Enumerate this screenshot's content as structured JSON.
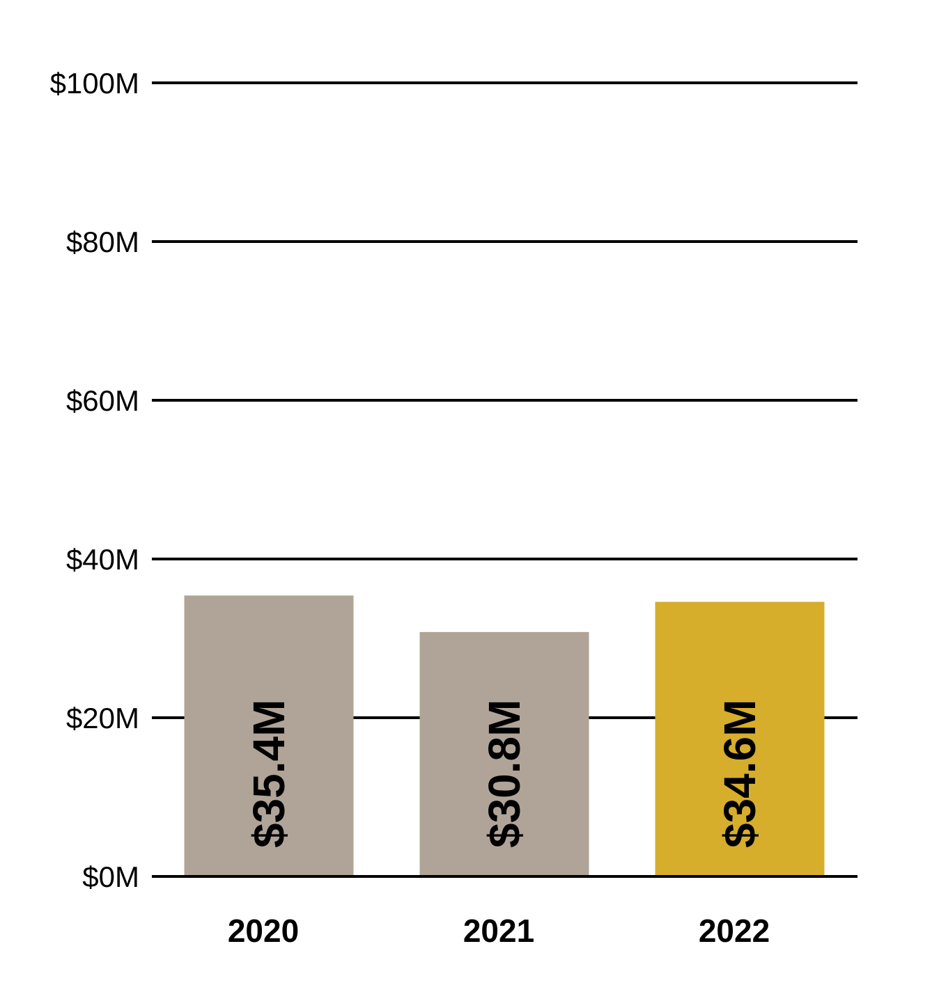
{
  "chart_data": {
    "type": "bar",
    "categories": [
      "2020",
      "2021",
      "2022"
    ],
    "values": [
      35.4,
      30.8,
      34.6
    ],
    "value_labels": [
      "$35.4M",
      "$30.8M",
      "$34.6M"
    ],
    "bar_colors": [
      "#b0a498",
      "#b0a498",
      "#d6ae2b"
    ],
    "ylim": [
      0,
      100
    ],
    "yticks": [
      0,
      20,
      40,
      60,
      80,
      100
    ],
    "ytick_labels": [
      "$0M",
      "$20M",
      "$40M",
      "$60M",
      "$80M",
      "$100M"
    ],
    "grid": true,
    "title": "",
    "xlabel": "",
    "ylabel": ""
  },
  "colors": {
    "grid": "#000000",
    "bar_default": "#b0a498",
    "bar_highlight": "#d6ae2b"
  }
}
